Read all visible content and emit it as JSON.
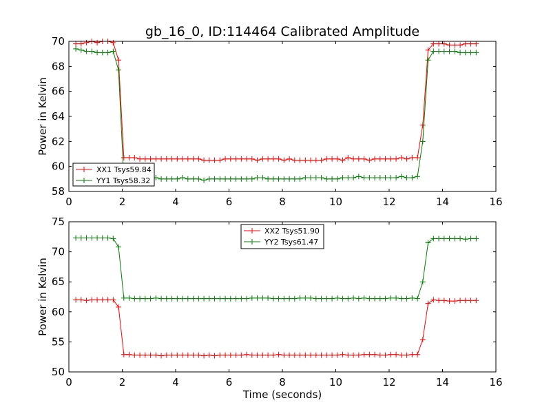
{
  "chart_data": [
    {
      "type": "line",
      "title": "gb_16_0, ID:114464 Calibrated Amplitude",
      "xlabel": "",
      "ylabel": "Power in Kelvin",
      "xlim": [
        0,
        16
      ],
      "ylim": [
        58,
        70
      ],
      "xticks": [
        0,
        2,
        4,
        6,
        8,
        10,
        12,
        14,
        16
      ],
      "yticks": [
        58,
        60,
        62,
        64,
        66,
        68,
        70
      ],
      "grid": false,
      "legend_position": "lower-left",
      "x": [
        0.26,
        0.46,
        0.66,
        0.86,
        1.06,
        1.26,
        1.46,
        1.66,
        1.86,
        2.06,
        2.26,
        2.46,
        2.66,
        2.86,
        3.06,
        3.26,
        3.46,
        3.66,
        3.86,
        4.06,
        4.26,
        4.46,
        4.66,
        4.86,
        5.06,
        5.26,
        5.46,
        5.66,
        5.86,
        6.06,
        6.26,
        6.46,
        6.66,
        6.86,
        7.06,
        7.26,
        7.46,
        7.66,
        7.86,
        8.06,
        8.26,
        8.46,
        8.66,
        8.86,
        9.06,
        9.26,
        9.46,
        9.66,
        9.86,
        10.06,
        10.26,
        10.46,
        10.66,
        10.86,
        11.06,
        11.26,
        11.46,
        11.66,
        11.86,
        12.06,
        12.26,
        12.46,
        12.66,
        12.86,
        13.06,
        13.26,
        13.46,
        13.66,
        13.86,
        14.06,
        14.26,
        14.46,
        14.66,
        14.86,
        15.06,
        15.26
      ],
      "series": [
        {
          "name": "XX1 Tsys59.84",
          "color": "#ff0000",
          "values": [
            69.8,
            69.8,
            69.9,
            70.0,
            69.9,
            70.0,
            70.0,
            69.9,
            68.5,
            60.7,
            60.7,
            60.7,
            60.6,
            60.6,
            60.6,
            60.6,
            60.6,
            60.6,
            60.6,
            60.6,
            60.6,
            60.6,
            60.6,
            60.6,
            60.5,
            60.5,
            60.5,
            60.5,
            60.6,
            60.6,
            60.6,
            60.6,
            60.6,
            60.6,
            60.5,
            60.6,
            60.6,
            60.6,
            60.6,
            60.5,
            60.6,
            60.5,
            60.5,
            60.5,
            60.5,
            60.5,
            60.5,
            60.6,
            60.6,
            60.6,
            60.5,
            60.7,
            60.6,
            60.6,
            60.6,
            60.5,
            60.6,
            60.6,
            60.6,
            60.6,
            60.6,
            60.7,
            60.6,
            60.7,
            60.7,
            63.3,
            69.3,
            69.8,
            69.8,
            69.8,
            69.7,
            69.7,
            69.7,
            69.8,
            69.8,
            69.8
          ]
        },
        {
          "name": "YY1 Tsys58.32",
          "color": "#008000",
          "values": [
            69.4,
            69.3,
            69.2,
            69.2,
            69.1,
            69.1,
            69.1,
            69.2,
            67.7,
            59.0,
            59.0,
            59.0,
            59.0,
            59.0,
            59.0,
            59.1,
            59.0,
            59.0,
            59.0,
            59.0,
            59.1,
            59.0,
            59.0,
            59.0,
            58.9,
            59.0,
            59.0,
            59.0,
            59.0,
            59.0,
            59.0,
            59.0,
            59.0,
            59.0,
            59.1,
            59.1,
            59.0,
            59.0,
            59.0,
            59.0,
            59.0,
            59.0,
            59.0,
            59.1,
            59.1,
            59.1,
            59.1,
            59.0,
            59.0,
            59.0,
            59.1,
            59.1,
            59.1,
            59.2,
            59.1,
            59.1,
            59.1,
            59.1,
            59.1,
            59.1,
            59.1,
            59.2,
            59.1,
            59.1,
            59.2,
            62.0,
            68.5,
            69.2,
            69.2,
            69.2,
            69.2,
            69.2,
            69.1,
            69.1,
            69.1,
            69.1
          ]
        }
      ]
    },
    {
      "type": "line",
      "title": "",
      "xlabel": "Time (seconds)",
      "ylabel": "Power in Kelvin",
      "xlim": [
        0,
        16
      ],
      "ylim": [
        50,
        75
      ],
      "xticks": [
        0,
        2,
        4,
        6,
        8,
        10,
        12,
        14,
        16
      ],
      "yticks": [
        50,
        55,
        60,
        65,
        70,
        75
      ],
      "grid": false,
      "legend_position": "upper-center",
      "x": [
        0.26,
        0.46,
        0.66,
        0.86,
        1.06,
        1.26,
        1.46,
        1.66,
        1.86,
        2.06,
        2.26,
        2.46,
        2.66,
        2.86,
        3.06,
        3.26,
        3.46,
        3.66,
        3.86,
        4.06,
        4.26,
        4.46,
        4.66,
        4.86,
        5.06,
        5.26,
        5.46,
        5.66,
        5.86,
        6.06,
        6.26,
        6.46,
        6.66,
        6.86,
        7.06,
        7.26,
        7.46,
        7.66,
        7.86,
        8.06,
        8.26,
        8.46,
        8.66,
        8.86,
        9.06,
        9.26,
        9.46,
        9.66,
        9.86,
        10.06,
        10.26,
        10.46,
        10.66,
        10.86,
        11.06,
        11.26,
        11.46,
        11.66,
        11.86,
        12.06,
        12.26,
        12.46,
        12.66,
        12.86,
        13.06,
        13.26,
        13.46,
        13.66,
        13.86,
        14.06,
        14.26,
        14.46,
        14.66,
        14.86,
        15.06,
        15.26
      ],
      "series": [
        {
          "name": "XX2 Tsys51.90",
          "color": "#ff0000",
          "values": [
            62.0,
            62.0,
            61.9,
            62.0,
            62.0,
            62.0,
            62.0,
            62.0,
            60.8,
            52.9,
            52.9,
            52.8,
            52.8,
            52.8,
            52.8,
            52.8,
            52.7,
            52.8,
            52.8,
            52.8,
            52.8,
            52.8,
            52.8,
            52.8,
            52.7,
            52.8,
            52.7,
            52.8,
            52.8,
            52.8,
            52.8,
            52.8,
            52.9,
            52.8,
            52.8,
            52.8,
            52.8,
            52.8,
            52.9,
            52.8,
            52.8,
            52.8,
            52.8,
            52.8,
            52.8,
            52.8,
            52.8,
            52.8,
            52.8,
            52.8,
            52.9,
            52.8,
            52.8,
            52.8,
            52.9,
            52.9,
            52.9,
            52.8,
            52.8,
            52.9,
            52.9,
            52.8,
            52.8,
            52.9,
            52.9,
            55.4,
            61.4,
            62.0,
            61.9,
            61.9,
            61.8,
            61.8,
            61.9,
            61.9,
            61.9,
            61.9
          ]
        },
        {
          "name": "YY2 Tsys61.47",
          "color": "#008000",
          "values": [
            72.3,
            72.3,
            72.3,
            72.3,
            72.3,
            72.3,
            72.3,
            72.2,
            70.8,
            62.3,
            62.3,
            62.2,
            62.2,
            62.2,
            62.2,
            62.3,
            62.2,
            62.2,
            62.2,
            62.2,
            62.2,
            62.2,
            62.2,
            62.2,
            62.2,
            62.2,
            62.2,
            62.2,
            62.2,
            62.2,
            62.2,
            62.2,
            62.2,
            62.3,
            62.3,
            62.3,
            62.3,
            62.2,
            62.2,
            62.2,
            62.2,
            62.2,
            62.3,
            62.3,
            62.3,
            62.2,
            62.2,
            62.2,
            62.2,
            62.3,
            62.2,
            62.2,
            62.3,
            62.2,
            62.3,
            62.2,
            62.2,
            62.2,
            62.2,
            62.3,
            62.3,
            62.2,
            62.2,
            62.3,
            62.2,
            65.0,
            71.5,
            72.2,
            72.2,
            72.2,
            72.2,
            72.2,
            72.2,
            72.1,
            72.2,
            72.2
          ]
        }
      ]
    }
  ]
}
